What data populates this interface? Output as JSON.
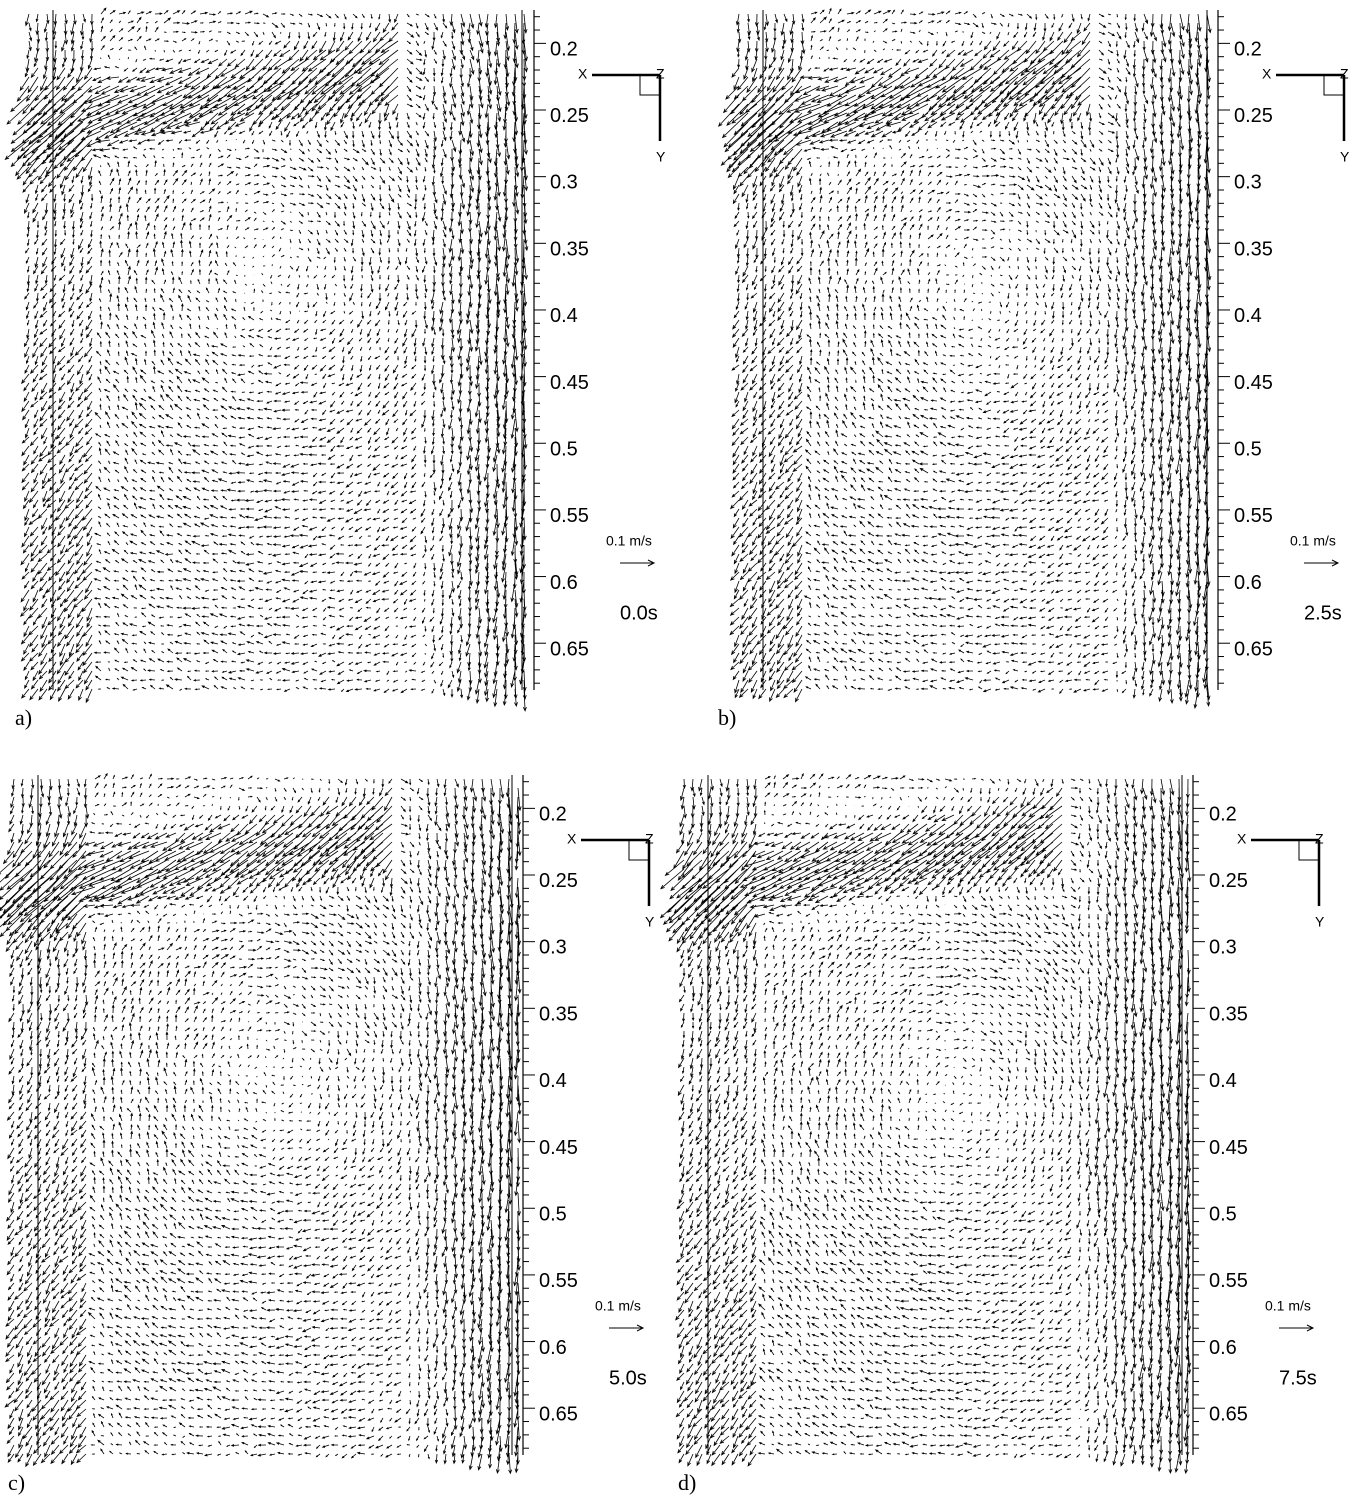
{
  "panels": [
    {
      "label": "a)",
      "time": "0.0s",
      "scale": "0.1 m/s",
      "axis": {
        "x": "X",
        "y": "Y",
        "z": "Z"
      },
      "ticks": [
        "0.2",
        "0.25",
        "0.3",
        "0.35",
        "0.4",
        "0.45",
        "0.5",
        "0.55",
        "0.6",
        "0.65"
      ]
    },
    {
      "label": "b)",
      "time": "2.5s",
      "scale": "0.1 m/s",
      "axis": {
        "x": "X",
        "y": "Y",
        "z": "Z"
      },
      "ticks": [
        "0.2",
        "0.25",
        "0.3",
        "0.35",
        "0.4",
        "0.45",
        "0.5",
        "0.55",
        "0.6",
        "0.65"
      ]
    },
    {
      "label": "c)",
      "time": "5.0s",
      "scale": "0.1 m/s",
      "axis": {
        "x": "X",
        "y": "Y",
        "z": "Z"
      },
      "ticks": [
        "0.2",
        "0.25",
        "0.3",
        "0.35",
        "0.4",
        "0.45",
        "0.5",
        "0.55",
        "0.6",
        "0.65"
      ]
    },
    {
      "label": "d)",
      "time": "7.5s",
      "scale": "0.1 m/s",
      "axis": {
        "x": "X",
        "y": "Y",
        "z": "Z"
      },
      "ticks": [
        "0.2",
        "0.25",
        "0.3",
        "0.35",
        "0.4",
        "0.45",
        "0.5",
        "0.55",
        "0.6",
        "0.65"
      ]
    }
  ]
}
